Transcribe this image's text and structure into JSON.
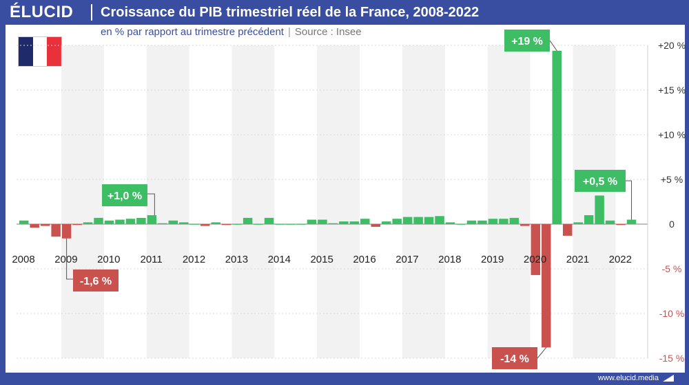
{
  "header": {
    "logo": "ÉLUCID",
    "title": "Croissance du PIB trimestriel réel de la France, 2008-2022",
    "subtitle_main": "en % par rapport au trimestre précédent",
    "subtitle_source": "Source : Insee"
  },
  "footer": {
    "site": "www.elucid.media"
  },
  "flag": {
    "colors": [
      "#1f2a6b",
      "#ffffff",
      "#e8313a"
    ]
  },
  "colors": {
    "positive": "#3dbd64",
    "negative": "#c9524f",
    "band": "#f2f2f2"
  },
  "chart_data": {
    "type": "bar",
    "title": "Croissance du PIB trimestriel réel de la France, 2008-2022",
    "ylim": [
      -15,
      20
    ],
    "yticks": [
      {
        "v": 20,
        "label": "+20 %"
      },
      {
        "v": 15,
        "label": "+15 %"
      },
      {
        "v": 10,
        "label": "+10 %"
      },
      {
        "v": 5,
        "label": "+5 %"
      },
      {
        "v": 0,
        "label": "0"
      },
      {
        "v": -5,
        "label": "-5 %"
      },
      {
        "v": -10,
        "label": "-10 %"
      },
      {
        "v": -15,
        "label": "-15 %"
      }
    ],
    "years": [
      "2008",
      "2009",
      "2010",
      "2011",
      "2012",
      "2013",
      "2014",
      "2015",
      "2016",
      "2017",
      "2018",
      "2019",
      "2020",
      "2021",
      "2022"
    ],
    "start_year": 2008,
    "quarters_per_year": 4,
    "values": [
      0.4,
      -0.4,
      -0.2,
      -1.4,
      -1.6,
      -0.1,
      0.2,
      0.7,
      0.4,
      0.5,
      0.6,
      0.7,
      1.0,
      0.1,
      0.4,
      0.2,
      0.0,
      -0.2,
      0.2,
      -0.1,
      0.0,
      0.7,
      0.0,
      0.7,
      0.0,
      0.0,
      0.0,
      0.5,
      0.5,
      0.1,
      0.3,
      0.3,
      0.6,
      -0.3,
      0.3,
      0.6,
      0.8,
      0.8,
      0.8,
      0.9,
      0.2,
      0.0,
      0.4,
      0.4,
      0.6,
      0.6,
      0.7,
      -0.2,
      -5.7,
      -13.8,
      19.4,
      -1.3,
      0.2,
      1.0,
      3.2,
      0.4,
      -0.1,
      0.5
    ],
    "annotations": [
      {
        "label": "+1,0 %",
        "index": 12,
        "type": "positive"
      },
      {
        "label": "-1,6 %",
        "index": 4,
        "type": "negative"
      },
      {
        "label": "+19 %",
        "index": 50,
        "type": "positive"
      },
      {
        "label": "-14 %",
        "index": 49,
        "type": "negative"
      },
      {
        "label": "+0,5 %",
        "index": 57,
        "type": "positive"
      }
    ]
  }
}
